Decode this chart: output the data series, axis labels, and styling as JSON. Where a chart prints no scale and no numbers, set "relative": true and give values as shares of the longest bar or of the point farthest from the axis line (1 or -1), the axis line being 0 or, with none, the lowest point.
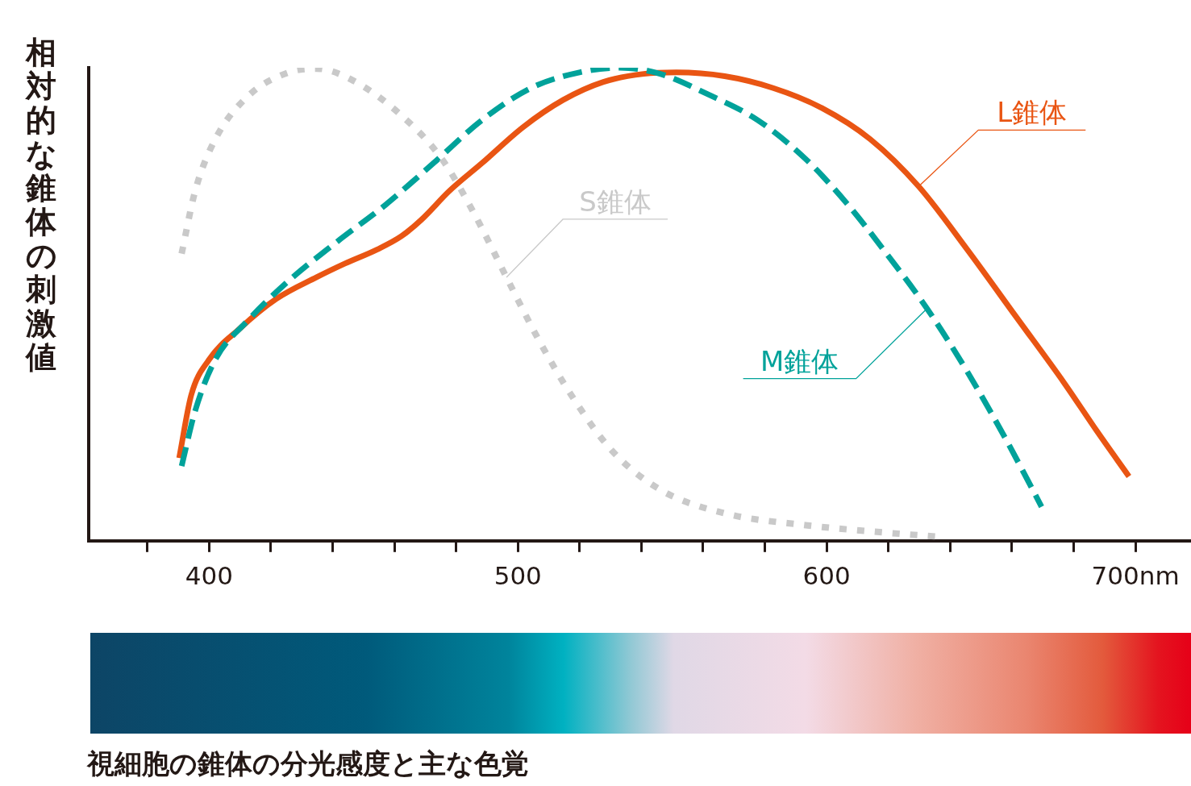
{
  "chart_data": {
    "type": "line",
    "title": "視細胞の錐体の分光感度と主な色覚",
    "ylabel": "相対的な錐体の刺激値",
    "relative": true,
    "marker": "none",
    "legend": false,
    "grid": false,
    "xlim": [
      361,
      718
    ],
    "xticks": [
      {
        "value": 380,
        "label": null
      },
      {
        "value": 400,
        "label": "400"
      },
      {
        "value": 420,
        "label": null
      },
      {
        "value": 440,
        "label": null
      },
      {
        "value": 460,
        "label": null
      },
      {
        "value": 480,
        "label": null
      },
      {
        "value": 500,
        "label": "500"
      },
      {
        "value": 520,
        "label": null
      },
      {
        "value": 540,
        "label": null
      },
      {
        "value": 560,
        "label": null
      },
      {
        "value": 580,
        "label": null
      },
      {
        "value": 600,
        "label": "600"
      },
      {
        "value": 620,
        "label": null
      },
      {
        "value": 640,
        "label": null
      },
      {
        "value": 660,
        "label": null
      },
      {
        "value": 680,
        "label": null
      },
      {
        "value": 700,
        "label": "700nm"
      }
    ],
    "series": [
      {
        "name": "S錐体",
        "color": "#c9c9c9",
        "line_style": "dotted",
        "x": [
          391.1,
          395.5,
          402,
          412.6,
          425.7,
          434.8,
          446.6,
          462.3,
          475.4,
          485.9,
          496.3,
          506.8,
          517.3,
          530.4,
          546.1,
          567,
          593.2,
          619.4,
          637.7
        ],
        "values": [
          0.607,
          0.74,
          0.849,
          0.94,
          0.99,
          0.998,
          0.973,
          0.899,
          0.807,
          0.691,
          0.557,
          0.424,
          0.308,
          0.191,
          0.108,
          0.058,
          0.033,
          0.017,
          0.008
        ]
      },
      {
        "name": "M錐体",
        "color": "#00a29a",
        "line_style": "dashed",
        "x": [
          391.1,
          395.5,
          402,
          412.6,
          425.7,
          441.4,
          457.1,
          472.8,
          488.5,
          504.2,
          519.9,
          533,
          546.1,
          561.8,
          577.5,
          593.2,
          606.3,
          619.4,
          632.5,
          645.5,
          658.6,
          669.6
        ],
        "values": [
          0.158,
          0.275,
          0.383,
          0.466,
          0.549,
          0.632,
          0.71,
          0.799,
          0.89,
          0.957,
          0.99,
          1,
          0.987,
          0.943,
          0.89,
          0.807,
          0.715,
          0.607,
          0.491,
          0.358,
          0.208,
          0.072
        ]
      },
      {
        "name": "L錐体",
        "color": "#e95513",
        "line_style": "solid",
        "x": [
          390.3,
          394.2,
          400,
          410,
          421.7,
          434.8,
          444,
          454.5,
          462.3,
          468.8,
          477.9,
          488.5,
          501.6,
          514.7,
          527.7,
          540.8,
          551.3,
          567,
          582.7,
          598.4,
          614.1,
          629.8,
          645.5,
          661.3,
          677,
          687.4,
          697.9
        ],
        "values": [
          0.175,
          0.308,
          0.383,
          0.449,
          0.511,
          0.557,
          0.586,
          0.616,
          0.644,
          0.679,
          0.74,
          0.799,
          0.874,
          0.932,
          0.97,
          0.987,
          0.99,
          0.982,
          0.957,
          0.915,
          0.849,
          0.749,
          0.616,
          0.474,
          0.333,
          0.233,
          0.136
        ]
      }
    ]
  }
}
